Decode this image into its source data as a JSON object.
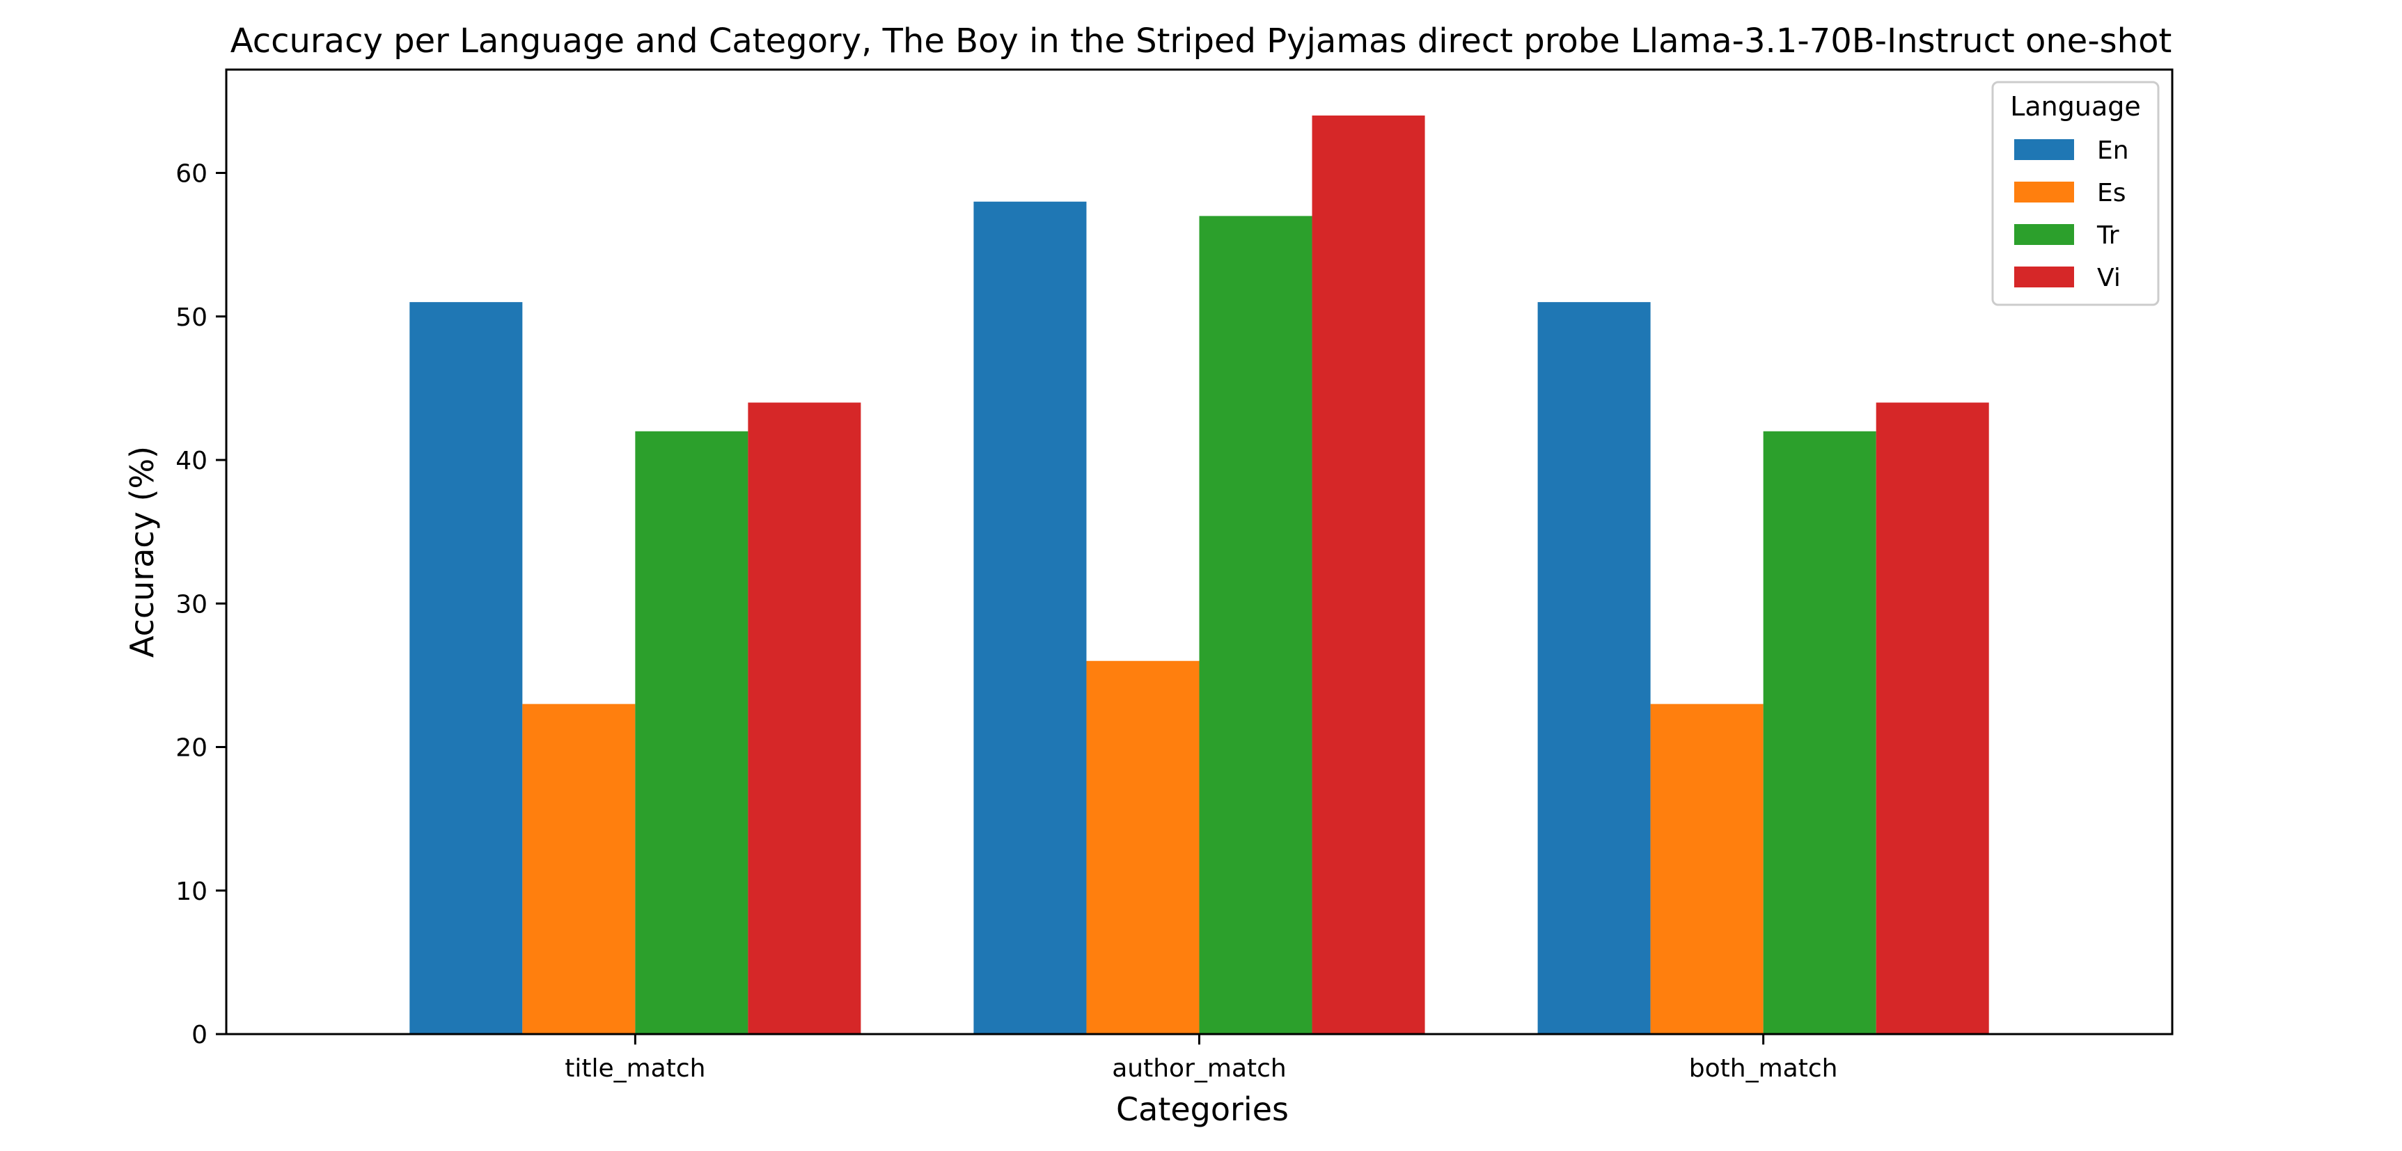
{
  "chart_data": {
    "type": "bar",
    "title": "Accuracy per Language and Category, The Boy in the Striped Pyjamas direct probe Llama-3.1-70B-Instruct one-shot",
    "xlabel": "Categories",
    "ylabel": "Accuracy (%)",
    "categories": [
      "title_match",
      "author_match",
      "both_match"
    ],
    "series": [
      {
        "name": "En",
        "color": "#1f77b4",
        "values": [
          51,
          58,
          51
        ]
      },
      {
        "name": "Es",
        "color": "#ff7f0e",
        "values": [
          23,
          26,
          23
        ]
      },
      {
        "name": "Tr",
        "color": "#2ca02c",
        "values": [
          42,
          57,
          42
        ]
      },
      {
        "name": "Vi",
        "color": "#d62728",
        "values": [
          44,
          64,
          44
        ]
      }
    ],
    "ylim": [
      0,
      67.2
    ],
    "yticks": [
      0,
      10,
      20,
      30,
      40,
      50,
      60
    ],
    "grid": false,
    "legend": {
      "title": "Language",
      "placement": "top-right"
    }
  }
}
